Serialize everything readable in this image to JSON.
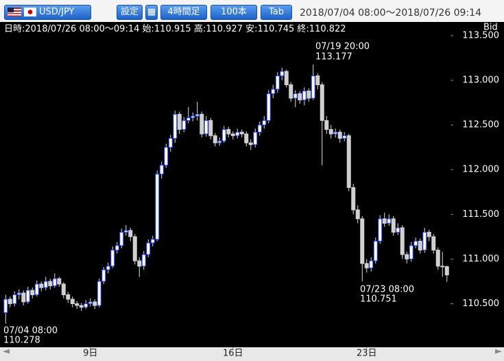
{
  "toolbar": {
    "pair": "USD/JPY",
    "buttons": [
      "設定",
      "4時間足",
      "100本",
      "Tab"
    ],
    "range": "2018/07/04 08:00〜2018/07/26 09:14"
  },
  "chart_data": {
    "type": "candlestick",
    "price_side": "Bid",
    "info": {
      "time": "日時:2018/07/26 08:00〜09:14",
      "open": "始:",
      "high": "高:",
      "low": "安:",
      "close": "終:"
    },
    "annotations": [
      "07/19 20:00",
      "07/23 08:00",
      "07/04 08:00"
    ],
    "up_color": "#ffffff",
    "up_edge": "#2040ff",
    "down_color": "#d0d0d0",
    "wick_color": "#e0e0e0",
    "xlim": [
      -0.5,
      99.5
    ],
    "xticks": [
      {
        "value": 19,
        "label": "9日"
      },
      {
        "value": 51,
        "label": "16日"
      },
      {
        "value": 81,
        "label": "23日"
      }
    ],
    "ylim": [
      110.02,
      113.63
    ],
    "yticks": [
      {
        "value": 113.5,
        "label": "113.500"
      },
      {
        "value": 113,
        "label": "113.000"
      },
      {
        "value": 112.5,
        "label": "112.500"
      },
      {
        "value": 112,
        "label": "112.000"
      },
      {
        "value": 111.5,
        "label": "111.500"
      },
      {
        "value": 111,
        "label": "111.000"
      },
      {
        "value": 110.5,
        "label": "110.500"
      }
    ],
    "ohlc": [
      [
        110.4,
        110.6,
        110.278,
        110.55
      ],
      [
        110.55,
        110.58,
        110.46,
        110.5
      ],
      [
        110.5,
        110.64,
        110.47,
        110.6
      ],
      [
        110.6,
        110.66,
        110.55,
        110.62
      ],
      [
        110.62,
        110.65,
        110.48,
        110.52
      ],
      [
        110.52,
        110.69,
        110.5,
        110.65
      ],
      [
        110.65,
        110.68,
        110.56,
        110.6
      ],
      [
        110.6,
        110.76,
        110.58,
        110.72
      ],
      [
        110.72,
        110.75,
        110.64,
        110.68
      ],
      [
        110.68,
        110.8,
        110.65,
        110.75
      ],
      [
        110.75,
        110.78,
        110.66,
        110.7
      ],
      [
        110.7,
        110.84,
        110.68,
        110.78
      ],
      [
        110.78,
        110.8,
        110.69,
        110.72
      ],
      [
        110.72,
        110.74,
        110.56,
        110.6
      ],
      [
        110.6,
        110.63,
        110.51,
        110.55
      ],
      [
        110.55,
        110.58,
        110.46,
        110.5
      ],
      [
        110.5,
        110.53,
        110.44,
        110.48
      ],
      [
        110.48,
        110.51,
        110.42,
        110.46
      ],
      [
        110.46,
        110.54,
        110.44,
        110.5
      ],
      [
        110.5,
        110.56,
        110.47,
        110.52
      ],
      [
        110.52,
        110.55,
        110.44,
        110.48
      ],
      [
        110.48,
        110.78,
        110.46,
        110.75
      ],
      [
        110.75,
        110.91,
        110.72,
        110.88
      ],
      [
        110.88,
        110.96,
        110.84,
        110.92
      ],
      [
        110.92,
        111.14,
        110.9,
        111.1
      ],
      [
        111.1,
        111.19,
        111.06,
        111.15
      ],
      [
        111.15,
        111.34,
        111.12,
        111.3
      ],
      [
        111.3,
        111.38,
        111.26,
        111.32
      ],
      [
        111.32,
        111.35,
        111.2,
        111.25
      ],
      [
        111.25,
        111.28,
        110.94,
        110.98
      ],
      [
        110.98,
        111.02,
        110.8,
        110.92
      ],
      [
        110.92,
        111.09,
        110.88,
        111.05
      ],
      [
        111.05,
        111.22,
        111.02,
        111.18
      ],
      [
        111.18,
        111.26,
        111.14,
        111.22
      ],
      [
        111.22,
        111.99,
        111.2,
        111.95
      ],
      [
        111.95,
        112.09,
        111.9,
        112.05
      ],
      [
        112.05,
        112.29,
        112.02,
        112.25
      ],
      [
        112.25,
        112.39,
        112.2,
        112.35
      ],
      [
        112.35,
        112.66,
        112.3,
        112.62
      ],
      [
        112.62,
        112.65,
        112.4,
        112.45
      ],
      [
        112.45,
        112.59,
        112.42,
        112.55
      ],
      [
        112.55,
        112.7,
        112.52,
        112.58
      ],
      [
        112.58,
        112.64,
        112.54,
        112.6
      ],
      [
        112.6,
        112.76,
        112.55,
        112.62
      ],
      [
        112.62,
        112.65,
        112.36,
        112.4
      ],
      [
        112.4,
        112.6,
        112.37,
        112.55
      ],
      [
        112.55,
        112.58,
        112.34,
        112.38
      ],
      [
        112.38,
        112.41,
        112.26,
        112.3
      ],
      [
        112.3,
        112.36,
        112.27,
        112.32
      ],
      [
        112.32,
        112.49,
        112.3,
        112.45
      ],
      [
        112.45,
        112.48,
        112.36,
        112.4
      ],
      [
        112.4,
        112.43,
        112.34,
        112.38
      ],
      [
        112.38,
        112.46,
        112.35,
        112.42
      ],
      [
        112.42,
        112.45,
        112.36,
        112.4
      ],
      [
        112.4,
        112.43,
        112.26,
        112.3
      ],
      [
        112.3,
        112.34,
        112.22,
        112.28
      ],
      [
        112.28,
        112.46,
        112.25,
        112.42
      ],
      [
        112.42,
        112.54,
        112.38,
        112.5
      ],
      [
        112.5,
        112.6,
        112.46,
        112.55
      ],
      [
        112.55,
        112.89,
        112.52,
        112.85
      ],
      [
        112.85,
        112.95,
        112.8,
        112.9
      ],
      [
        112.9,
        113.09,
        112.86,
        113.05
      ],
      [
        113.05,
        113.14,
        113.0,
        113.1
      ],
      [
        113.1,
        113.12,
        112.92,
        112.95
      ],
      [
        112.95,
        112.98,
        112.76,
        112.8
      ],
      [
        112.8,
        112.89,
        112.7,
        112.85
      ],
      [
        112.85,
        112.88,
        112.74,
        112.78
      ],
      [
        112.78,
        112.92,
        112.72,
        112.88
      ],
      [
        112.88,
        112.91,
        112.76,
        112.8
      ],
      [
        112.8,
        113.177,
        112.78,
        113.05
      ],
      [
        113.05,
        113.08,
        112.9,
        112.95
      ],
      [
        112.95,
        112.98,
        112.05,
        112.55
      ],
      [
        112.55,
        112.6,
        112.4,
        112.45
      ],
      [
        112.45,
        112.5,
        112.35,
        112.4
      ],
      [
        112.4,
        112.46,
        112.36,
        112.42
      ],
      [
        112.42,
        112.45,
        112.3,
        112.35
      ],
      [
        112.35,
        112.42,
        112.32,
        112.38
      ],
      [
        112.38,
        112.4,
        111.76,
        111.8
      ],
      [
        111.8,
        111.84,
        111.5,
        111.55
      ],
      [
        111.55,
        111.6,
        111.4,
        111.45
      ],
      [
        111.45,
        111.48,
        110.751,
        110.95
      ],
      [
        110.95,
        111.0,
        110.85,
        110.9
      ],
      [
        110.9,
        111.02,
        110.86,
        110.98
      ],
      [
        110.98,
        111.24,
        110.95,
        111.2
      ],
      [
        111.2,
        111.49,
        111.17,
        111.45
      ],
      [
        111.45,
        111.52,
        111.36,
        111.4
      ],
      [
        111.4,
        111.5,
        111.37,
        111.45
      ],
      [
        111.45,
        111.48,
        111.26,
        111.3
      ],
      [
        111.3,
        111.4,
        111.27,
        111.35
      ],
      [
        111.35,
        111.38,
        111.0,
        111.05
      ],
      [
        111.05,
        111.08,
        110.95,
        111.0
      ],
      [
        111.0,
        111.19,
        110.97,
        111.15
      ],
      [
        111.15,
        111.24,
        111.12,
        111.2
      ],
      [
        111.2,
        111.23,
        111.06,
        111.1
      ],
      [
        111.1,
        111.35,
        111.07,
        111.3
      ],
      [
        111.3,
        111.33,
        111.2,
        111.25
      ],
      [
        111.25,
        111.28,
        111.06,
        111.1
      ],
      [
        111.1,
        111.13,
        110.88,
        110.92
      ],
      [
        110.92,
        111.08,
        110.8,
        110.915
      ],
      [
        110.915,
        110.927,
        110.745,
        110.822
      ]
    ]
  }
}
